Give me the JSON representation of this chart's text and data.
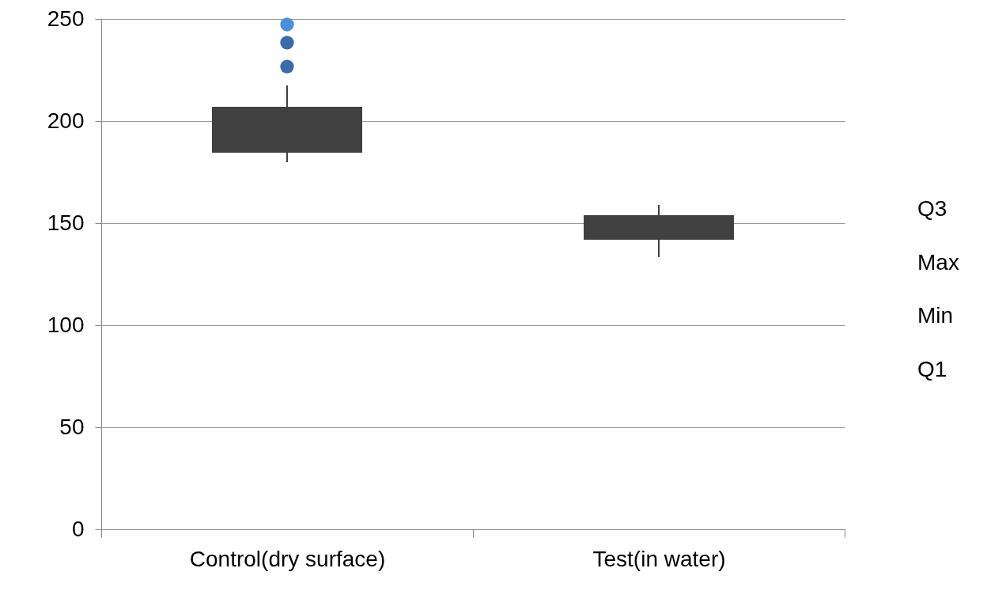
{
  "chart_data": {
    "type": "box",
    "categories": [
      "Control(dry surface)",
      "Test(in water)"
    ],
    "boxes": [
      {
        "low": 179.8,
        "q1": 184.5,
        "q3": 207,
        "high": 217.4
      },
      {
        "low": 133.3,
        "q1": 141.9,
        "q3": 153.9,
        "high": 158.9
      }
    ],
    "color": "#404040",
    "series": [
      {
        "type": "scatter",
        "x": [
          "Control(dry surface)",
          "Control(dry surface)",
          "Control(dry surface)"
        ],
        "values": [
          247.3,
          238.4,
          226.7
        ],
        "colors": [
          "#4a90d9",
          "#3d6aa8",
          "#3d6aa8"
        ]
      }
    ],
    "ylim": [
      0,
      250
    ],
    "yticks": [
      0,
      50,
      100,
      150,
      200,
      250
    ],
    "grid": "y",
    "annotations": [
      "Q3",
      "Max",
      "Min",
      "Q1"
    ]
  }
}
